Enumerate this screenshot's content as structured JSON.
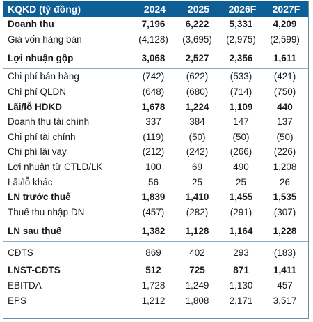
{
  "table": {
    "header": {
      "label": "KQKD (tỷ đồng)",
      "years": [
        "2024",
        "2025",
        "2026F",
        "2027F"
      ]
    },
    "rows": [
      {
        "label": "Doanh thu",
        "values": [
          "7,196",
          "6,222",
          "5,331",
          "4,209"
        ],
        "bold": true
      },
      {
        "label": "Giá vốn hàng bán",
        "values": [
          "(4,128)",
          "(3,695)",
          "(2,975)",
          "(2,599)"
        ],
        "bold": false
      },
      {
        "label": "Lợi nhuận gộp",
        "values": [
          "3,068",
          "2,527",
          "2,356",
          "1,611"
        ],
        "bold": true
      },
      {
        "label": "Chi phí bán hàng",
        "values": [
          "(742)",
          "(622)",
          "(533)",
          "(421)"
        ],
        "bold": false
      },
      {
        "label": "Chi phí QLDN",
        "values": [
          "(648)",
          "(680)",
          "(714)",
          "(750)"
        ],
        "bold": false
      },
      {
        "label": "Lãi/lỗ HDKD",
        "values": [
          "1,678",
          "1,224",
          "1,109",
          "440"
        ],
        "bold": true
      },
      {
        "label": "Doanh thu tài chính",
        "values": [
          "337",
          "384",
          "147",
          "137"
        ],
        "bold": false
      },
      {
        "label": "Chi phí tài chính",
        "values": [
          "(119)",
          "(50)",
          "(50)",
          "(50)"
        ],
        "bold": false
      },
      {
        "label": "Chi phí lãi vay",
        "values": [
          "(212)",
          "(242)",
          "(266)",
          "(226)"
        ],
        "bold": false
      },
      {
        "label": "Lợi nhuận từ CTLD/LK",
        "values": [
          "100",
          "69",
          "490",
          "1,208"
        ],
        "bold": false
      },
      {
        "label": "Lãi/lỗ khác",
        "values": [
          "56",
          "25",
          "25",
          "26"
        ],
        "bold": false
      },
      {
        "label": "LN trước thuế",
        "values": [
          "1,839",
          "1,410",
          "1,455",
          "1,535"
        ],
        "bold": true
      },
      {
        "label": "Thuế thu nhập DN",
        "values": [
          "(457)",
          "(282)",
          "(291)",
          "(307)"
        ],
        "bold": false
      },
      {
        "label": "LN sau thuế",
        "values": [
          "1,382",
          "1,128",
          "1,164",
          "1,228"
        ],
        "bold": true
      },
      {
        "label": "CĐTS",
        "values": [
          "869",
          "402",
          "293",
          "(183)"
        ],
        "bold": false
      },
      {
        "label": "LNST-CĐTS",
        "values": [
          "512",
          "725",
          "871",
          "1,411"
        ],
        "bold": true
      },
      {
        "label": "EBITDA",
        "values": [
          "1,728",
          "1,249",
          "1,130",
          "457"
        ],
        "bold": false
      },
      {
        "label": "EPS",
        "values": [
          "1,212",
          "1,808",
          "2,171",
          "3,517"
        ],
        "bold": false
      }
    ]
  },
  "colors": {
    "header_bg": "#0e5f95",
    "header_text": "#ffffff",
    "border": "#6b8ea8"
  }
}
